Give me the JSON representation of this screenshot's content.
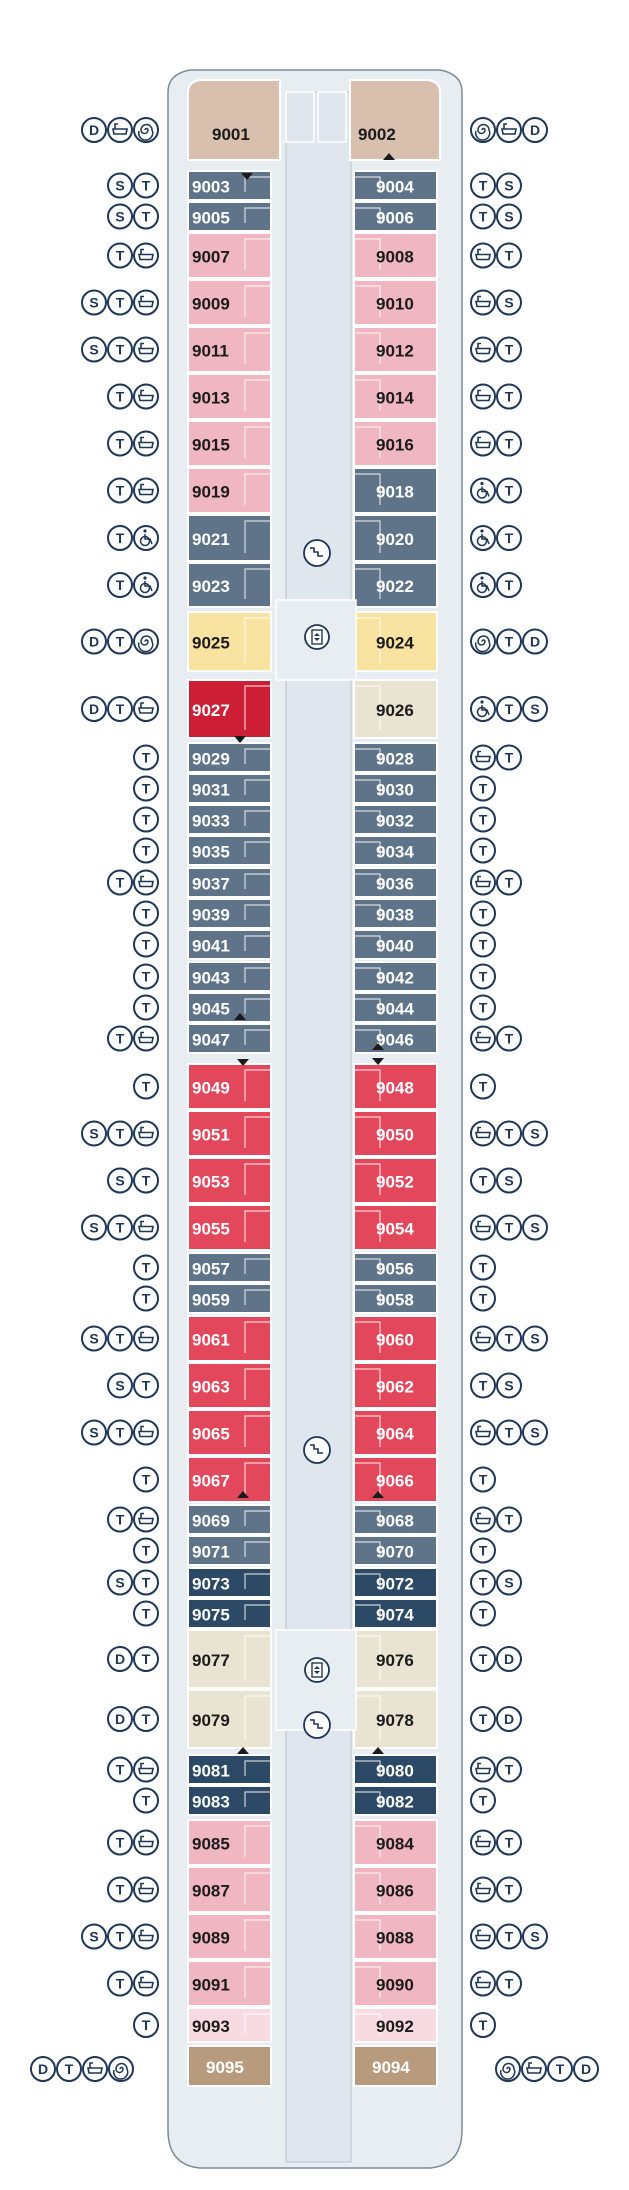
{
  "deck": {
    "top_cabins": [
      {
        "num": "9001",
        "color": "#d8bfae",
        "side": "left"
      },
      {
        "num": "9002",
        "color": "#d8bfae",
        "side": "right"
      }
    ],
    "bottom_cabins": [
      {
        "num": "9095",
        "color": "#b89a7c",
        "side": "left"
      },
      {
        "num": "9094",
        "color": "#b89a7c",
        "side": "right"
      }
    ],
    "colors": {
      "hull_fill": "#e8edf2",
      "corridor": "#dfe6ee",
      "slate": "#5f7489",
      "navy": "#2c4a66",
      "pink": "#f0b6c2",
      "light_pink": "#f7dbe1",
      "red": "#e2475c",
      "dark_red": "#cc1f35",
      "yellow": "#f9e3a1",
      "beige": "#e9e3d2",
      "icon": "#1f3656"
    },
    "legend_icons": {
      "S": "shower-icon",
      "T": "tv-icon",
      "D": "dining-icon",
      "bath": "bathtub-icon",
      "spiral": "jacuzzi-icon",
      "wheelchair": "wheelchair-icon"
    },
    "rows": [
      {
        "left": {
          "num": "9003",
          "color": "slate",
          "icons": [
            "S",
            "T"
          ]
        },
        "right": {
          "num": "9004",
          "color": "slate",
          "icons": [
            "T",
            "S"
          ]
        }
      },
      {
        "left": {
          "num": "9005",
          "color": "slate",
          "icons": [
            "S",
            "T"
          ]
        },
        "right": {
          "num": "9006",
          "color": "slate",
          "icons": [
            "T",
            "S"
          ]
        }
      },
      {
        "left": {
          "num": "9007",
          "color": "pink",
          "icons": [
            "T",
            "bath"
          ]
        },
        "right": {
          "num": "9008",
          "color": "pink",
          "icons": [
            "bath",
            "T"
          ]
        }
      },
      {
        "left": {
          "num": "9009",
          "color": "pink",
          "icons": [
            "S",
            "T",
            "bath"
          ]
        },
        "right": {
          "num": "9010",
          "color": "pink",
          "icons": [
            "bath",
            "S"
          ]
        }
      },
      {
        "left": {
          "num": "9011",
          "color": "pink",
          "icons": [
            "S",
            "T",
            "bath"
          ]
        },
        "right": {
          "num": "9012",
          "color": "pink",
          "icons": [
            "bath",
            "T"
          ]
        }
      },
      {
        "left": {
          "num": "9013",
          "color": "pink",
          "icons": [
            "T",
            "bath"
          ]
        },
        "right": {
          "num": "9014",
          "color": "pink",
          "icons": [
            "bath",
            "T"
          ]
        }
      },
      {
        "left": {
          "num": "9015",
          "color": "pink",
          "icons": [
            "T",
            "bath"
          ]
        },
        "right": {
          "num": "9016",
          "color": "pink",
          "icons": [
            "bath",
            "T"
          ]
        }
      },
      {
        "left": {
          "num": "9019",
          "color": "pink",
          "icons": [
            "T",
            "bath"
          ]
        },
        "right": {
          "num": "9018",
          "color": "slate",
          "icons": [
            "wheelchair",
            "T"
          ]
        }
      },
      {
        "left": {
          "num": "9021",
          "color": "slate",
          "icons": [
            "T",
            "wheelchair"
          ]
        },
        "right": {
          "num": "9020",
          "color": "slate",
          "icons": [
            "wheelchair",
            "T"
          ]
        }
      },
      {
        "left": {
          "num": "9023",
          "color": "slate",
          "icons": [
            "T",
            "wheelchair"
          ]
        },
        "right": {
          "num": "9022",
          "color": "slate",
          "icons": [
            "wheelchair",
            "T"
          ]
        }
      },
      {
        "left": {
          "num": "9025",
          "color": "yellow",
          "icons": [
            "D",
            "T",
            "spiral"
          ]
        },
        "right": {
          "num": "9024",
          "color": "yellow",
          "icons": [
            "spiral",
            "T",
            "D"
          ]
        }
      },
      {
        "left": {
          "num": "9027",
          "color": "dark_red",
          "icons": [
            "D",
            "T",
            "bath"
          ]
        },
        "right": {
          "num": "9026",
          "color": "beige",
          "icons": [
            "wheelchair",
            "T",
            "S"
          ]
        }
      },
      {
        "left": {
          "num": "9029",
          "color": "slate",
          "icons": [
            "T"
          ]
        },
        "right": {
          "num": "9028",
          "color": "slate",
          "icons": [
            "bath",
            "T"
          ]
        }
      },
      {
        "left": {
          "num": "9031",
          "color": "slate",
          "icons": [
            "T"
          ]
        },
        "right": {
          "num": "9030",
          "color": "slate",
          "icons": [
            "T"
          ]
        }
      },
      {
        "left": {
          "num": "9033",
          "color": "slate",
          "icons": [
            "T"
          ]
        },
        "right": {
          "num": "9032",
          "color": "slate",
          "icons": [
            "T"
          ]
        }
      },
      {
        "left": {
          "num": "9035",
          "color": "slate",
          "icons": [
            "T"
          ]
        },
        "right": {
          "num": "9034",
          "color": "slate",
          "icons": [
            "T"
          ]
        }
      },
      {
        "left": {
          "num": "9037",
          "color": "slate",
          "icons": [
            "T",
            "bath"
          ]
        },
        "right": {
          "num": "9036",
          "color": "slate",
          "icons": [
            "bath",
            "T"
          ]
        }
      },
      {
        "left": {
          "num": "9039",
          "color": "slate",
          "icons": [
            "T"
          ]
        },
        "right": {
          "num": "9038",
          "color": "slate",
          "icons": [
            "T"
          ]
        }
      },
      {
        "left": {
          "num": "9041",
          "color": "slate",
          "icons": [
            "T"
          ]
        },
        "right": {
          "num": "9040",
          "color": "slate",
          "icons": [
            "T"
          ]
        }
      },
      {
        "left": {
          "num": "9043",
          "color": "slate",
          "icons": [
            "T"
          ]
        },
        "right": {
          "num": "9042",
          "color": "slate",
          "icons": [
            "T"
          ]
        }
      },
      {
        "left": {
          "num": "9045",
          "color": "slate",
          "icons": [
            "T"
          ]
        },
        "right": {
          "num": "9044",
          "color": "slate",
          "icons": [
            "T"
          ]
        }
      },
      {
        "left": {
          "num": "9047",
          "color": "slate",
          "icons": [
            "T",
            "bath"
          ]
        },
        "right": {
          "num": "9046",
          "color": "slate",
          "icons": [
            "bath",
            "T"
          ]
        }
      },
      {
        "left": {
          "num": "9049",
          "color": "red",
          "icons": [
            "T"
          ]
        },
        "right": {
          "num": "9048",
          "color": "red",
          "icons": [
            "T"
          ]
        }
      },
      {
        "left": {
          "num": "9051",
          "color": "red",
          "icons": [
            "S",
            "T",
            "bath"
          ]
        },
        "right": {
          "num": "9050",
          "color": "red",
          "icons": [
            "bath",
            "T",
            "S"
          ]
        }
      },
      {
        "left": {
          "num": "9053",
          "color": "red",
          "icons": [
            "S",
            "T"
          ]
        },
        "right": {
          "num": "9052",
          "color": "red",
          "icons": [
            "T",
            "S"
          ]
        }
      },
      {
        "left": {
          "num": "9055",
          "color": "red",
          "icons": [
            "S",
            "T",
            "bath"
          ]
        },
        "right": {
          "num": "9054",
          "color": "red",
          "icons": [
            "bath",
            "T",
            "S"
          ]
        }
      },
      {
        "left": {
          "num": "9057",
          "color": "slate",
          "icons": [
            "T"
          ]
        },
        "right": {
          "num": "9056",
          "color": "slate",
          "icons": [
            "T"
          ]
        }
      },
      {
        "left": {
          "num": "9059",
          "color": "slate",
          "icons": [
            "T"
          ]
        },
        "right": {
          "num": "9058",
          "color": "slate",
          "icons": [
            "T"
          ]
        }
      },
      {
        "left": {
          "num": "9061",
          "color": "red",
          "icons": [
            "S",
            "T",
            "bath"
          ]
        },
        "right": {
          "num": "9060",
          "color": "red",
          "icons": [
            "bath",
            "T",
            "S"
          ]
        }
      },
      {
        "left": {
          "num": "9063",
          "color": "red",
          "icons": [
            "S",
            "T"
          ]
        },
        "right": {
          "num": "9062",
          "color": "red",
          "icons": [
            "T",
            "S"
          ]
        }
      },
      {
        "left": {
          "num": "9065",
          "color": "red",
          "icons": [
            "S",
            "T",
            "bath"
          ]
        },
        "right": {
          "num": "9064",
          "color": "red",
          "icons": [
            "bath",
            "T",
            "S"
          ]
        }
      },
      {
        "left": {
          "num": "9067",
          "color": "red",
          "icons": [
            "T"
          ]
        },
        "right": {
          "num": "9066",
          "color": "red",
          "icons": [
            "T"
          ]
        }
      },
      {
        "left": {
          "num": "9069",
          "color": "slate",
          "icons": [
            "T",
            "bath"
          ]
        },
        "right": {
          "num": "9068",
          "color": "slate",
          "icons": [
            "bath",
            "T"
          ]
        }
      },
      {
        "left": {
          "num": "9071",
          "color": "slate",
          "icons": [
            "T"
          ]
        },
        "right": {
          "num": "9070",
          "color": "slate",
          "icons": [
            "T"
          ]
        }
      },
      {
        "left": {
          "num": "9073",
          "color": "navy",
          "icons": [
            "S",
            "T"
          ]
        },
        "right": {
          "num": "9072",
          "color": "navy",
          "icons": [
            "T",
            "S"
          ]
        }
      },
      {
        "left": {
          "num": "9075",
          "color": "navy",
          "icons": [
            "T"
          ]
        },
        "right": {
          "num": "9074",
          "color": "navy",
          "icons": [
            "T"
          ]
        }
      },
      {
        "left": {
          "num": "9077",
          "color": "beige",
          "icons": [
            "D",
            "T"
          ]
        },
        "right": {
          "num": "9076",
          "color": "beige",
          "icons": [
            "T",
            "D"
          ]
        }
      },
      {
        "left": {
          "num": "9079",
          "color": "beige",
          "icons": [
            "D",
            "T"
          ]
        },
        "right": {
          "num": "9078",
          "color": "beige",
          "icons": [
            "T",
            "D"
          ]
        }
      },
      {
        "left": {
          "num": "9081",
          "color": "navy",
          "icons": [
            "T",
            "bath"
          ]
        },
        "right": {
          "num": "9080",
          "color": "navy",
          "icons": [
            "bath",
            "T"
          ]
        }
      },
      {
        "left": {
          "num": "9083",
          "color": "navy",
          "icons": [
            "T"
          ]
        },
        "right": {
          "num": "9082",
          "color": "navy",
          "icons": [
            "T"
          ]
        }
      },
      {
        "left": {
          "num": "9085",
          "color": "pink",
          "icons": [
            "T",
            "bath"
          ]
        },
        "right": {
          "num": "9084",
          "color": "pink",
          "icons": [
            "bath",
            "T"
          ]
        }
      },
      {
        "left": {
          "num": "9087",
          "color": "pink",
          "icons": [
            "T",
            "bath"
          ]
        },
        "right": {
          "num": "9086",
          "color": "pink",
          "icons": [
            "bath",
            "T"
          ]
        }
      },
      {
        "left": {
          "num": "9089",
          "color": "pink",
          "icons": [
            "S",
            "T",
            "bath"
          ]
        },
        "right": {
          "num": "9088",
          "color": "pink",
          "icons": [
            "bath",
            "T",
            "S"
          ]
        }
      },
      {
        "left": {
          "num": "9091",
          "color": "pink",
          "icons": [
            "T",
            "bath"
          ]
        },
        "right": {
          "num": "9090",
          "color": "pink",
          "icons": [
            "bath",
            "T"
          ]
        }
      },
      {
        "left": {
          "num": "9093",
          "color": "light_pink",
          "icons": [
            "T"
          ]
        },
        "right": {
          "num": "9092",
          "color": "light_pink",
          "icons": [
            "T"
          ]
        }
      }
    ],
    "top_icons": {
      "left": [
        "D",
        "bath",
        "spiral"
      ],
      "right": [
        "spiral",
        "bath",
        "D"
      ]
    },
    "bottom_icons": {
      "left": [
        "D",
        "T",
        "bath",
        "spiral"
      ],
      "right": [
        "spiral",
        "bath",
        "T",
        "D"
      ]
    }
  }
}
